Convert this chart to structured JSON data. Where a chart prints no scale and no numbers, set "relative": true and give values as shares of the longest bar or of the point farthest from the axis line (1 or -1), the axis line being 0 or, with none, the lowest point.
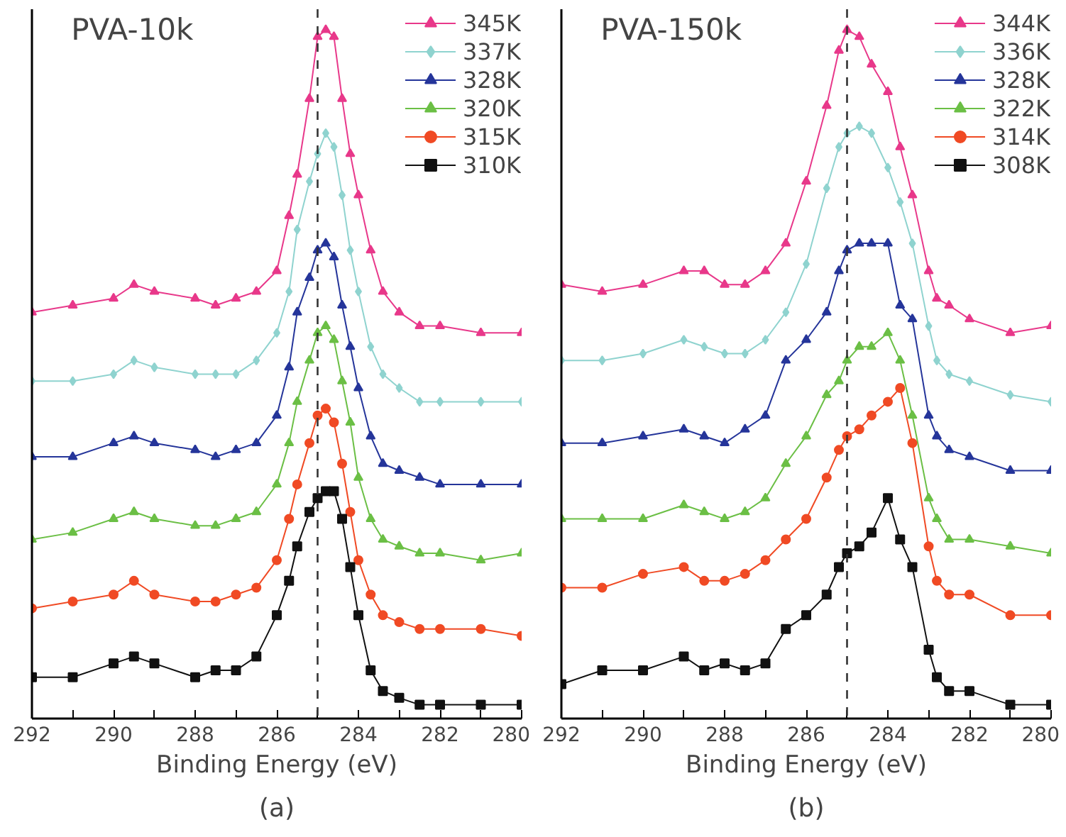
{
  "chart_data": [
    {
      "type": "line",
      "title": "PVA-10k",
      "xlabel": "Binding Energy (eV)",
      "annotations": [
        "(a)"
      ],
      "relative": true,
      "legend": "top right",
      "grid": false,
      "tick_labels": "x",
      "xlim": [
        292,
        280
      ],
      "xticks": [
        292,
        {
          "value": 291,
          "label": null
        },
        290,
        {
          "value": 289,
          "label": null
        },
        288,
        {
          "value": 287,
          "label": null
        },
        286,
        {
          "value": 285,
          "label": null
        },
        284,
        {
          "value": 283,
          "label": null
        },
        282,
        {
          "value": 281,
          "label": null
        },
        280
      ],
      "x": [
        292,
        291,
        290,
        289.5,
        289,
        288,
        287.5,
        287,
        286.5,
        286,
        285.7,
        285.5,
        285.2,
        285,
        284.8,
        284.6,
        284.4,
        284.2,
        284,
        283.7,
        283.4,
        283,
        282.5,
        282,
        281,
        280
      ],
      "ref_lines": [
        {
          "axis": "x",
          "value": 285,
          "label": null,
          "color": "#333333",
          "line_style": "dashed"
        }
      ],
      "series": [
        {
          "name": "345K",
          "color": "#e8388a",
          "marker": "triangle",
          "values": [
            0.59,
            0.6,
            0.61,
            0.63,
            0.62,
            0.61,
            0.6,
            0.61,
            0.62,
            0.65,
            0.73,
            0.79,
            0.9,
            0.99,
            1.0,
            0.99,
            0.9,
            0.82,
            0.76,
            0.68,
            0.62,
            0.59,
            0.57,
            0.57,
            0.56,
            0.56
          ]
        },
        {
          "name": "337K",
          "color": "#8fd3cf",
          "marker": "diamond",
          "values": [
            0.49,
            0.49,
            0.5,
            0.52,
            0.51,
            0.5,
            0.5,
            0.5,
            0.52,
            0.56,
            0.62,
            0.71,
            0.78,
            0.82,
            0.85,
            0.83,
            0.76,
            0.68,
            0.62,
            0.54,
            0.5,
            0.48,
            0.46,
            0.46,
            0.46,
            0.46
          ]
        },
        {
          "name": "328K",
          "color": "#25359a",
          "marker": "triangle",
          "values": [
            0.38,
            0.38,
            0.4,
            0.41,
            0.4,
            0.39,
            0.38,
            0.39,
            0.4,
            0.44,
            0.51,
            0.59,
            0.64,
            0.68,
            0.69,
            0.67,
            0.6,
            0.54,
            0.48,
            0.41,
            0.37,
            0.36,
            0.35,
            0.34,
            0.34,
            0.34
          ]
        },
        {
          "name": "320K",
          "color": "#6bbf45",
          "marker": "triangle",
          "values": [
            0.26,
            0.27,
            0.29,
            0.3,
            0.29,
            0.28,
            0.28,
            0.29,
            0.3,
            0.34,
            0.4,
            0.46,
            0.52,
            0.56,
            0.57,
            0.55,
            0.49,
            0.43,
            0.35,
            0.29,
            0.26,
            0.25,
            0.24,
            0.24,
            0.23,
            0.24
          ]
        },
        {
          "name": "315K",
          "color": "#f04a24",
          "marker": "circle",
          "values": [
            0.16,
            0.17,
            0.18,
            0.2,
            0.18,
            0.17,
            0.17,
            0.18,
            0.19,
            0.23,
            0.29,
            0.34,
            0.4,
            0.44,
            0.45,
            0.43,
            0.37,
            0.3,
            0.23,
            0.18,
            0.15,
            0.14,
            0.13,
            0.13,
            0.13,
            0.12
          ]
        },
        {
          "name": "310K",
          "color": "#111111",
          "marker": "square",
          "values": [
            0.06,
            0.06,
            0.08,
            0.09,
            0.08,
            0.06,
            0.07,
            0.07,
            0.09,
            0.15,
            0.2,
            0.25,
            0.3,
            0.32,
            0.33,
            0.33,
            0.29,
            0.22,
            0.15,
            0.07,
            0.04,
            0.03,
            0.02,
            0.02,
            0.02,
            0.02
          ]
        }
      ]
    },
    {
      "type": "line",
      "title": "PVA-150k",
      "xlabel": "Binding Energy (eV)",
      "annotations": [
        "(b)"
      ],
      "relative": true,
      "legend": "top right",
      "grid": false,
      "tick_labels": "x",
      "xlim": [
        292,
        280
      ],
      "xticks": [
        292,
        {
          "value": 291,
          "label": null
        },
        290,
        {
          "value": 289,
          "label": null
        },
        288,
        {
          "value": 287,
          "label": null
        },
        286,
        {
          "value": 285,
          "label": null
        },
        284,
        {
          "value": 283,
          "label": null
        },
        282,
        {
          "value": 281,
          "label": null
        },
        280
      ],
      "x": [
        292,
        291,
        290,
        289,
        288.5,
        288,
        287.5,
        287,
        286.5,
        286,
        285.5,
        285.2,
        285,
        284.7,
        284.4,
        284,
        283.7,
        283.4,
        283,
        282.8,
        282.5,
        282,
        281,
        280
      ],
      "ref_lines": [
        {
          "axis": "x",
          "value": 285,
          "label": null,
          "color": "#333333",
          "line_style": "dashed"
        }
      ],
      "series": [
        {
          "name": "344K",
          "color": "#e8388a",
          "marker": "triangle",
          "values": [
            0.63,
            0.62,
            0.63,
            0.65,
            0.65,
            0.63,
            0.63,
            0.65,
            0.69,
            0.78,
            0.89,
            0.97,
            1.0,
            0.99,
            0.95,
            0.91,
            0.83,
            0.76,
            0.65,
            0.61,
            0.6,
            0.58,
            0.56,
            0.57
          ]
        },
        {
          "name": "336K",
          "color": "#8fd3cf",
          "marker": "diamond",
          "values": [
            0.52,
            0.52,
            0.53,
            0.55,
            0.54,
            0.53,
            0.53,
            0.55,
            0.59,
            0.66,
            0.77,
            0.83,
            0.85,
            0.86,
            0.85,
            0.8,
            0.75,
            0.69,
            0.57,
            0.52,
            0.5,
            0.49,
            0.47,
            0.46
          ]
        },
        {
          "name": "328K",
          "color": "#25359a",
          "marker": "triangle",
          "values": [
            0.4,
            0.4,
            0.41,
            0.42,
            0.41,
            0.4,
            0.42,
            0.44,
            0.52,
            0.55,
            0.59,
            0.65,
            0.68,
            0.69,
            0.69,
            0.69,
            0.6,
            0.58,
            0.44,
            0.41,
            0.39,
            0.38,
            0.36,
            0.36
          ]
        },
        {
          "name": "322K",
          "color": "#6bbf45",
          "marker": "triangle",
          "values": [
            0.29,
            0.29,
            0.29,
            0.31,
            0.3,
            0.29,
            0.3,
            0.32,
            0.37,
            0.41,
            0.47,
            0.49,
            0.52,
            0.54,
            0.54,
            0.56,
            0.52,
            0.44,
            0.32,
            0.29,
            0.26,
            0.26,
            0.25,
            0.24
          ]
        },
        {
          "name": "314K",
          "color": "#f04a24",
          "marker": "circle",
          "values": [
            0.19,
            0.19,
            0.21,
            0.22,
            0.2,
            0.2,
            0.21,
            0.23,
            0.26,
            0.29,
            0.35,
            0.39,
            0.41,
            0.42,
            0.44,
            0.46,
            0.48,
            0.4,
            0.25,
            0.2,
            0.18,
            0.18,
            0.15,
            0.15
          ]
        },
        {
          "name": "308K",
          "color": "#111111",
          "marker": "square",
          "values": [
            0.05,
            0.07,
            0.07,
            0.09,
            0.07,
            0.08,
            0.07,
            0.08,
            0.13,
            0.15,
            0.18,
            0.22,
            0.24,
            0.25,
            0.27,
            0.32,
            0.26,
            0.22,
            0.1,
            0.06,
            0.04,
            0.04,
            0.02,
            0.02
          ]
        }
      ]
    }
  ]
}
